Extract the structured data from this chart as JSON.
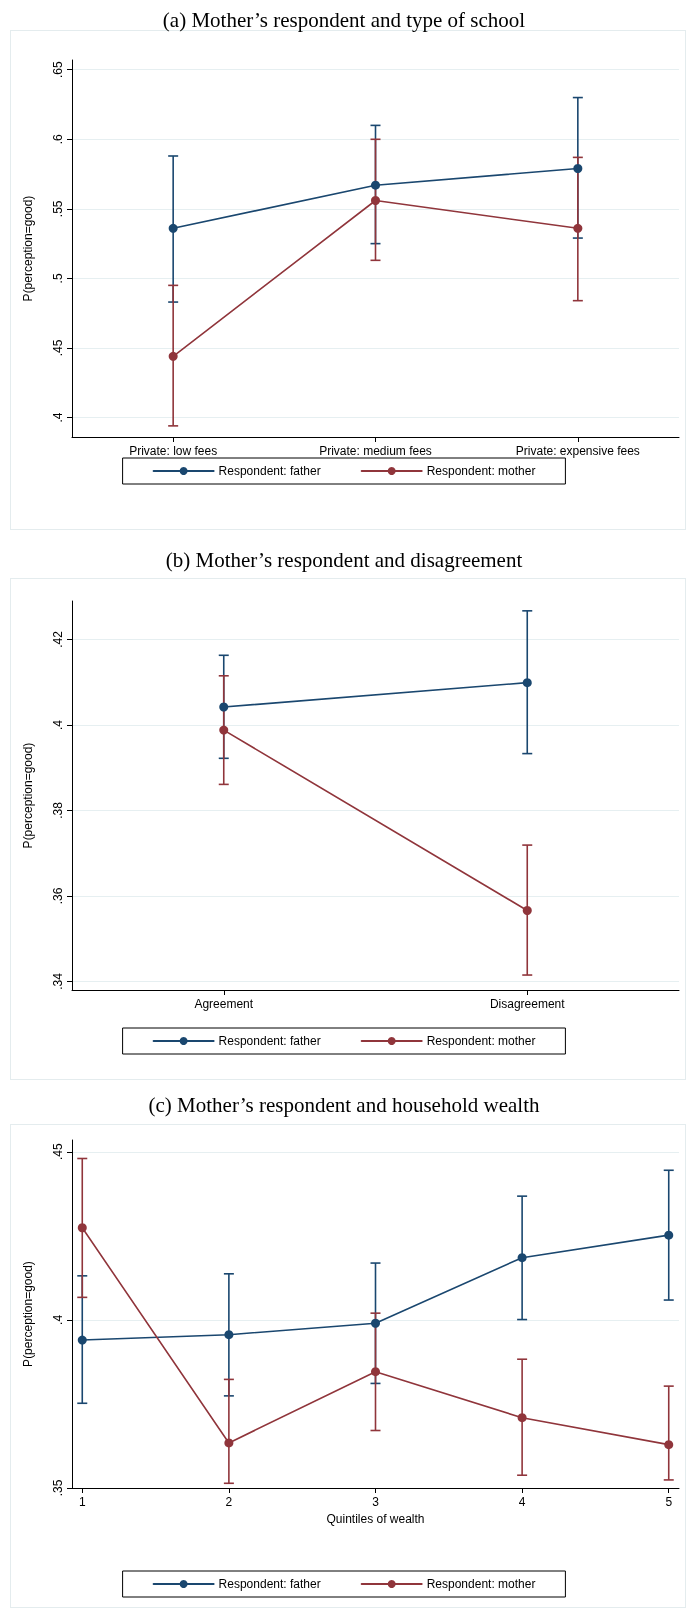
{
  "chart_data": [
    {
      "type": "line",
      "title": "(a) Mother’s respondent and type of school",
      "ylabel": "P(perception=good)",
      "categories": [
        "Private: low fees",
        "Private: medium fees",
        "Private: expensive fees"
      ],
      "ylim": [
        0.386,
        0.657
      ],
      "yticks": [
        {
          "value": 0.4,
          "label": ".4"
        },
        {
          "value": 0.45,
          "label": ".45"
        },
        {
          "value": 0.5,
          "label": ".5"
        },
        {
          "value": 0.55,
          "label": ".55"
        },
        {
          "value": 0.6,
          "label": ".6"
        },
        {
          "value": 0.65,
          "label": ".65"
        }
      ],
      "grid": "y",
      "legend": "bottom",
      "marker": "circle",
      "line_style": "solid",
      "series": [
        {
          "name": "Respondent: father",
          "color": "#1a476f",
          "values": [
            0.536,
            0.567,
            0.579
          ],
          "errors": [
            [
              0.483,
              0.588
            ],
            [
              0.525,
              0.61
            ],
            [
              0.529,
              0.63
            ]
          ]
        },
        {
          "name": "Respondent: mother",
          "color": "#90353b",
          "values": [
            0.444,
            0.556,
            0.536
          ],
          "errors": [
            [
              0.394,
              0.495
            ],
            [
              0.513,
              0.6
            ],
            [
              0.484,
              0.587
            ]
          ]
        }
      ]
    },
    {
      "type": "line",
      "title": "(b) Mother’s respondent and disagreement",
      "ylabel": "P(perception=good)",
      "categories": [
        "Agreement",
        "Disagreement"
      ],
      "ylim": [
        0.338,
        0.429
      ],
      "yticks": [
        {
          "value": 0.34,
          "label": ".34"
        },
        {
          "value": 0.36,
          "label": ".36"
        },
        {
          "value": 0.38,
          "label": ".38"
        },
        {
          "value": 0.4,
          "label": ".4"
        },
        {
          "value": 0.42,
          "label": ".42"
        }
      ],
      "grid": "y",
      "legend": "bottom",
      "marker": "circle",
      "line_style": "solid",
      "series": [
        {
          "name": "Respondent: father",
          "color": "#1a476f",
          "values": [
            0.4042,
            0.4099
          ],
          "errors": [
            [
              0.3922,
              0.4163
            ],
            [
              0.3933,
              0.4267
            ]
          ]
        },
        {
          "name": "Respondent: mother",
          "color": "#90353b",
          "values": [
            0.3988,
            0.3566
          ],
          "errors": [
            [
              0.3861,
              0.4115
            ],
            [
              0.3415,
              0.3719
            ]
          ]
        }
      ]
    },
    {
      "type": "line",
      "title": "(c) Mother’s respondent and household wealth",
      "xlabel": "Quintiles of wealth",
      "ylabel": "P(perception=good)",
      "x": [
        1,
        2,
        3,
        4,
        5
      ],
      "xlim": [
        0.93,
        5.07
      ],
      "xticks": [
        1,
        2,
        3,
        4,
        5
      ],
      "ylim": [
        0.35,
        0.4535
      ],
      "yticks": [
        {
          "value": 0.35,
          "label": ".35"
        },
        {
          "value": 0.4,
          "label": ".4"
        },
        {
          "value": 0.45,
          "label": ".45"
        }
      ],
      "grid": "y",
      "legend": "bottom",
      "marker": "circle",
      "line_style": "solid",
      "series": [
        {
          "name": "Respondent: father",
          "color": "#1a476f",
          "values": [
            0.394,
            0.3956,
            0.399,
            0.4185,
            0.4252
          ],
          "errors": [
            [
              0.3752,
              0.4131
            ],
            [
              0.3774,
              0.4137
            ],
            [
              0.3811,
              0.4169
            ],
            [
              0.4001,
              0.4368
            ],
            [
              0.4059,
              0.4445
            ]
          ]
        },
        {
          "name": "Respondent: mother",
          "color": "#90353b",
          "values": [
            0.4274,
            0.3634,
            0.3846,
            0.3709,
            0.3629
          ],
          "errors": [
            [
              0.4067,
              0.448
            ],
            [
              0.3514,
              0.3823
            ],
            [
              0.3671,
              0.402
            ],
            [
              0.3538,
              0.3883
            ],
            [
              0.3524,
              0.3803
            ]
          ]
        }
      ]
    }
  ]
}
